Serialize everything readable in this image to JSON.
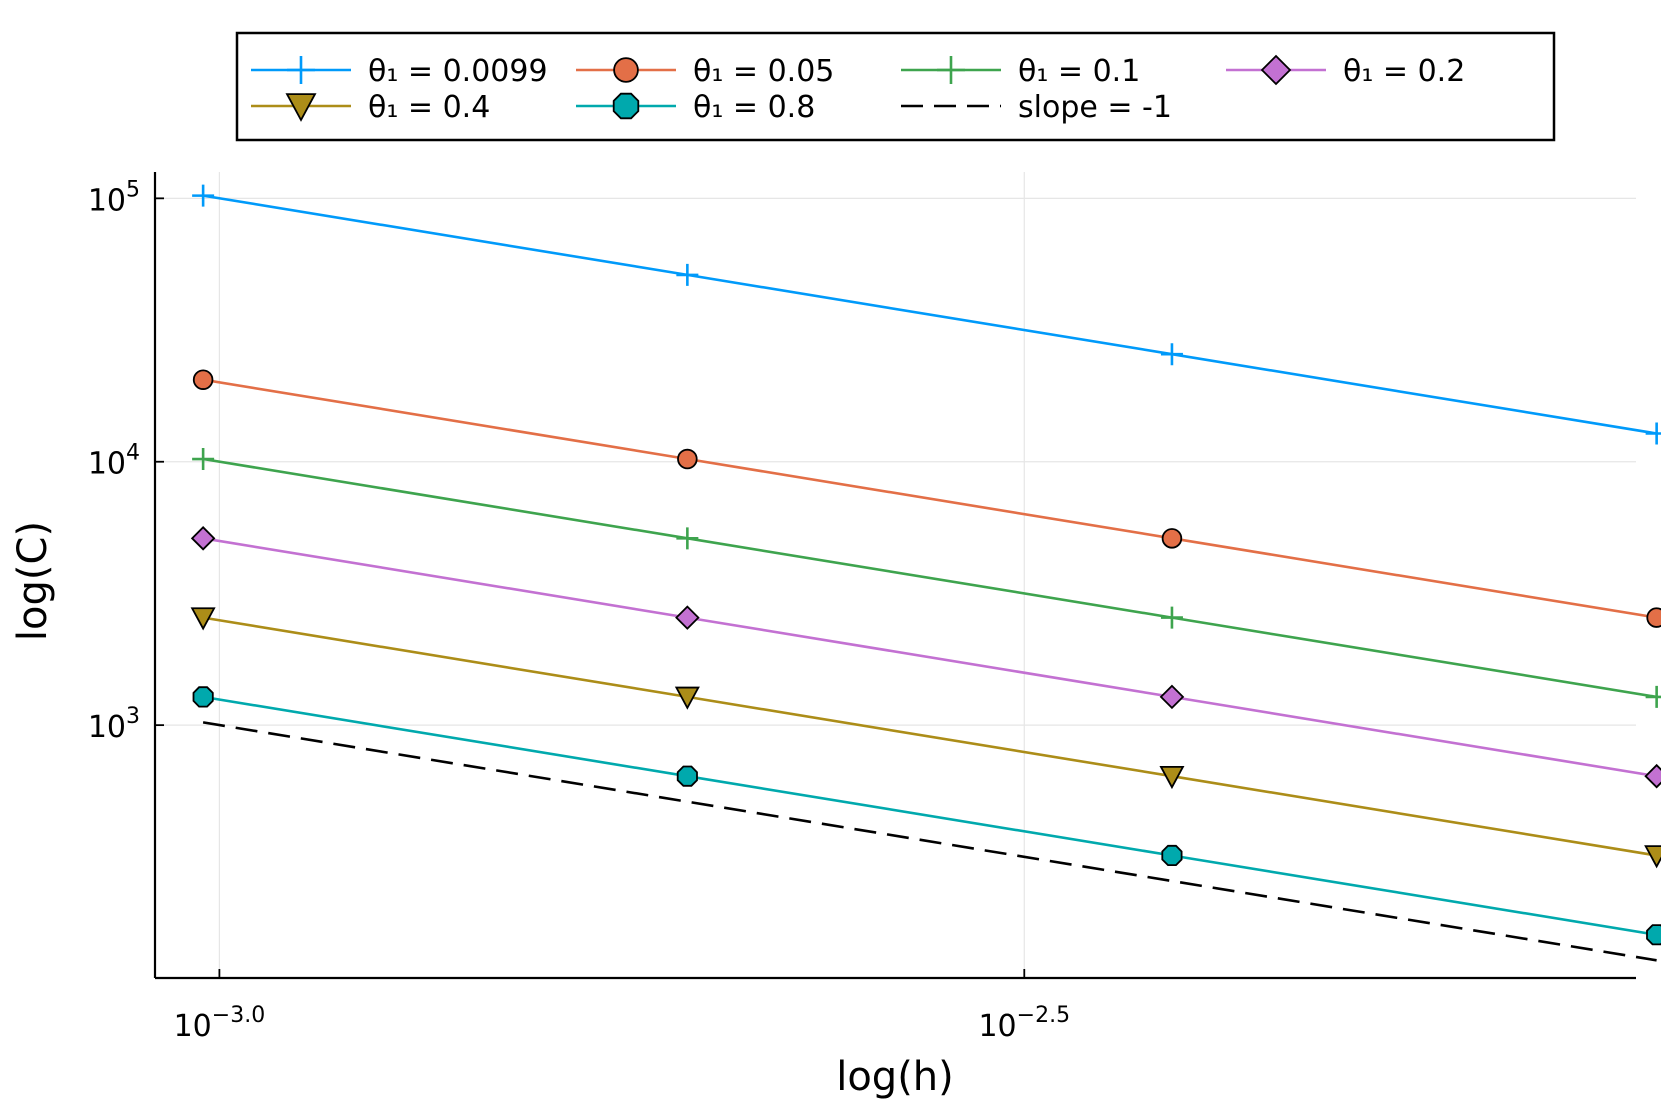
{
  "chart_data": {
    "type": "line",
    "xscale": "log10",
    "yscale": "log10",
    "xlabel": "log(h)",
    "ylabel": "log(C)",
    "xlim_log10": [
      -3.04,
      -2.12
    ],
    "ylim_log10": [
      2.04,
      5.1
    ],
    "grid": true,
    "legend_position": "top, outside plot, 4 columns",
    "xticks": [
      {
        "log10": -3.0,
        "base": "10",
        "exponent": "−3.0"
      },
      {
        "log10": -2.5,
        "base": "10",
        "exponent": "−2.5"
      }
    ],
    "yticks": [
      {
        "log10": 3,
        "base": "10",
        "exponent": "3"
      },
      {
        "log10": 4,
        "base": "10",
        "exponent": "4"
      },
      {
        "log10": 5,
        "base": "10",
        "exponent": "5"
      }
    ],
    "x": [
      0.000977,
      0.001953,
      0.003906,
      0.007813
    ],
    "series": [
      {
        "name": "θ₁ = 0.0099",
        "color": "#009AFA",
        "marker": "cross",
        "dashed": false,
        "values": [
          102400,
          51200,
          25600,
          12800
        ]
      },
      {
        "name": "θ₁ = 0.05",
        "color": "#E36F47",
        "marker": "circle",
        "dashed": false,
        "values": [
          20480,
          10240,
          5120,
          2560
        ]
      },
      {
        "name": "θ₁ = 0.1",
        "color": "#3EA44E",
        "marker": "cross",
        "dashed": false,
        "values": [
          10240,
          5120,
          2560,
          1280
        ]
      },
      {
        "name": "θ₁ = 0.2",
        "color": "#C371D2",
        "marker": "diamond",
        "dashed": false,
        "values": [
          5120,
          2560,
          1280,
          640
        ]
      },
      {
        "name": "θ₁ = 0.4",
        "color": "#AC8D18",
        "marker": "triangle-down",
        "dashed": false,
        "values": [
          2560,
          1280,
          640,
          320
        ]
      },
      {
        "name": "θ₁ = 0.8",
        "color": "#00A9AD",
        "marker": "octagon",
        "dashed": false,
        "values": [
          1280,
          640,
          320,
          160
        ]
      },
      {
        "name": "slope = -1",
        "color": "#000000",
        "marker": "none",
        "dashed": true,
        "values": [
          1024,
          512,
          256,
          128
        ]
      }
    ]
  }
}
